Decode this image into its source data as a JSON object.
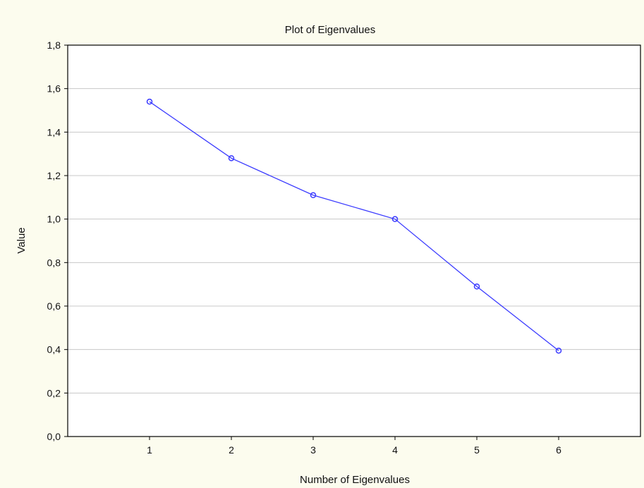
{
  "chart_data": {
    "type": "line",
    "title": "Plot of Eigenvalues",
    "xlabel": "Number of Eigenvalues",
    "ylabel": "Value",
    "x": [
      1,
      2,
      3,
      4,
      5,
      6
    ],
    "xlim": [
      0,
      7
    ],
    "ylim": [
      0.0,
      1.8
    ],
    "y_ticks": [
      "0,0",
      "0,2",
      "0,4",
      "0,6",
      "0,8",
      "1,0",
      "1,2",
      "1,4",
      "1,6",
      "1,8"
    ],
    "x_ticks": [
      "1",
      "2",
      "3",
      "4",
      "5",
      "6"
    ],
    "series": [
      {
        "values": [
          1.54,
          1.28,
          1.11,
          1.0,
          0.69,
          0.395
        ]
      }
    ],
    "grid": "horizontal",
    "colors": {
      "line": "#3b3bff",
      "background": "#fcfcee",
      "plot_background": "#ffffff",
      "grid": "#c8c8c8",
      "axis": "#000000"
    }
  }
}
